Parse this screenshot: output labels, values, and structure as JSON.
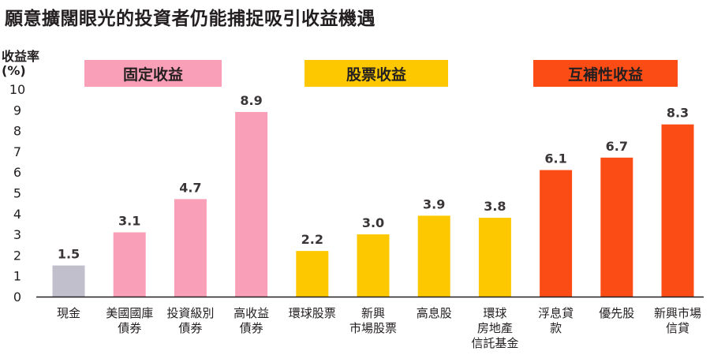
{
  "chart_data": {
    "type": "bar",
    "title": "願意擴闊眼光的投資者仍能捕捉吸引收益機遇",
    "ylabel_line1": "收益率",
    "ylabel_line2": "(%)",
    "ylim": [
      0,
      10
    ],
    "yticks": [
      "0",
      "1",
      "2",
      "3",
      "4",
      "5",
      "6",
      "7",
      "8",
      "9",
      "10"
    ],
    "categories": [
      [
        "現金"
      ],
      [
        "美國國庫",
        "債券"
      ],
      [
        "投資級別",
        "債券"
      ],
      [
        "高收益",
        "債券"
      ],
      [
        "環球股票"
      ],
      [
        "新興",
        "市場股票"
      ],
      [
        "高息股"
      ],
      [
        "環球",
        "房地產",
        "信託基金"
      ],
      [
        "浮息貸",
        "款"
      ],
      [
        "優先股"
      ],
      [
        "新興市場",
        "信貸"
      ]
    ],
    "values": [
      1.5,
      3.1,
      4.7,
      8.9,
      2.2,
      3.0,
      3.9,
      3.8,
      6.1,
      6.7,
      8.3
    ],
    "value_labels": [
      "1.5",
      "3.1",
      "4.7",
      "8.9",
      "2.2",
      "3.0",
      "3.9",
      "3.8",
      "6.1",
      "6.7",
      "8.3"
    ],
    "bar_groups": [
      "cash",
      "fixed",
      "fixed",
      "fixed",
      "equity",
      "equity",
      "equity",
      "equity",
      "hybrid",
      "hybrid",
      "hybrid"
    ],
    "groups": [
      {
        "key": "fixed",
        "label": "固定收益",
        "color": "#f9a0b8"
      },
      {
        "key": "equity",
        "label": "股票收益",
        "color": "#fdc800"
      },
      {
        "key": "hybrid",
        "label": "互補性收益",
        "color": "#fc4c16"
      }
    ],
    "colors": {
      "cash": "#c1bfcb",
      "fixed": "#f9a0b8",
      "equity": "#fdc800",
      "hybrid": "#fc4c16",
      "axis": "#231f20",
      "text": "#231f20"
    }
  }
}
